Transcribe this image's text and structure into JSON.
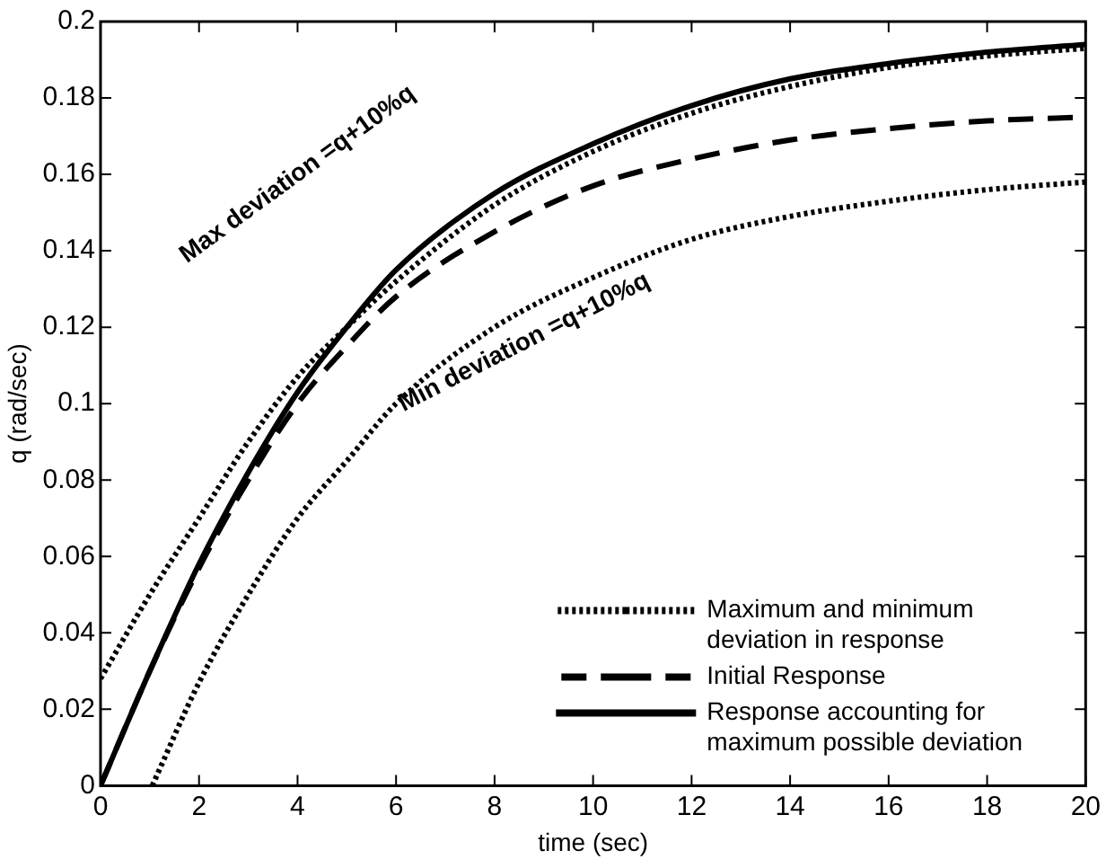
{
  "chart_data": {
    "type": "line",
    "xlabel": "time (sec)",
    "ylabel": "q (rad/sec)",
    "xlim": [
      0,
      20
    ],
    "xticks": [
      0,
      2,
      4,
      6,
      8,
      10,
      12,
      14,
      16,
      18,
      20
    ],
    "ylim": [
      0,
      0.2
    ],
    "yticks": [
      0,
      0.02,
      0.04,
      0.06,
      0.08,
      0.1,
      0.12,
      0.14,
      0.16,
      0.18,
      0.2
    ],
    "grid": false,
    "legend": "bottom right",
    "marker": "none",
    "series": [
      {
        "name": "Maximum and minimum deviation in response",
        "color": "#000000",
        "line_style": "dotted",
        "x": [
          0,
          1,
          2,
          3,
          4,
          5,
          6,
          8,
          10,
          12,
          14,
          16,
          18,
          20
        ],
        "values": [
          0.028,
          0.05,
          0.07,
          0.09,
          0.107,
          0.12,
          0.132,
          0.152,
          0.166,
          0.176,
          0.183,
          0.188,
          0.191,
          0.193
        ]
      },
      {
        "color": "#000000",
        "line_style": "dotted",
        "x": [
          1.05,
          2,
          3,
          4,
          5,
          6,
          8,
          10,
          12,
          14,
          16,
          18,
          20
        ],
        "values": [
          0,
          0.027,
          0.05,
          0.07,
          0.085,
          0.1,
          0.12,
          0.133,
          0.143,
          0.149,
          0.153,
          0.156,
          0.158
        ]
      },
      {
        "name": "Initial Response",
        "color": "#000000",
        "line_style": "dashed",
        "x": [
          0,
          1,
          2,
          3,
          4,
          5,
          6,
          8,
          10,
          12,
          14,
          16,
          18,
          20
        ],
        "values": [
          0,
          0.03,
          0.057,
          0.08,
          0.1,
          0.115,
          0.128,
          0.145,
          0.157,
          0.164,
          0.169,
          0.172,
          0.174,
          0.175
        ]
      },
      {
        "name": "Response accounting for maximum possible deviation",
        "color": "#000000",
        "line_style": "solid",
        "x": [
          0,
          1,
          2,
          3,
          4,
          5,
          6,
          8,
          10,
          12,
          14,
          16,
          18,
          20
        ],
        "values": [
          0,
          0.03,
          0.058,
          0.082,
          0.103,
          0.12,
          0.135,
          0.155,
          0.168,
          0.178,
          0.185,
          0.189,
          0.192,
          0.194
        ]
      }
    ],
    "annotations": [
      "Max deviation =q+10%q",
      "Min deviation =q+10%q"
    ]
  }
}
